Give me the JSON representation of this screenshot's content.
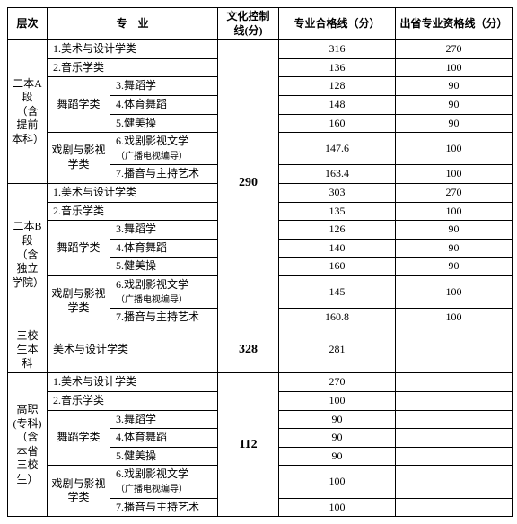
{
  "headers": {
    "level": "层次",
    "major": "专　业",
    "culture": "文化控制线(分)",
    "pass": "专业合格线（分）",
    "outprov": "出省专业资格线（分）"
  },
  "groups": {
    "danceSub": "舞蹈学类",
    "dramaSub": "戏剧与影视学类"
  },
  "subrows": {
    "r1": "1.美术与设计学类",
    "r2": "2.音乐学类",
    "r3": "3.舞蹈学",
    "r4": "4.体育舞蹈",
    "r5": "5.健美操",
    "r6a": "6.戏剧影视文学",
    "r6b": "（广播电视编导）",
    "r7": "7.播音与主持艺术"
  },
  "sections": [
    {
      "name": "二本A段（含提前本科）",
      "culture": "290",
      "cultureRowspan": 14,
      "rows": [
        {
          "pass": "316",
          "out": "270"
        },
        {
          "pass": "136",
          "out": "100"
        },
        {
          "pass": "128",
          "out": "90"
        },
        {
          "pass": "148",
          "out": "90"
        },
        {
          "pass": "160",
          "out": "90"
        },
        {
          "pass": "147.6",
          "out": "100"
        },
        {
          "pass": "163.4",
          "out": "100"
        }
      ]
    },
    {
      "name": "二本B段（含独立学院）",
      "rows": [
        {
          "pass": "303",
          "out": "270"
        },
        {
          "pass": "135",
          "out": "100"
        },
        {
          "pass": "126",
          "out": "90"
        },
        {
          "pass": "140",
          "out": "90"
        },
        {
          "pass": "160",
          "out": "90"
        },
        {
          "pass": "145",
          "out": "100"
        },
        {
          "pass": "160.8",
          "out": "100"
        }
      ]
    },
    {
      "name": "三校生本科",
      "culture": "328",
      "single": {
        "major": "美术与设计学类",
        "pass": "281",
        "out": ""
      }
    },
    {
      "name": "高职(专科)（含本省三校生）",
      "culture": "112",
      "rows": [
        {
          "pass": "270",
          "out": ""
        },
        {
          "pass": "100",
          "out": ""
        },
        {
          "pass": "90",
          "out": ""
        },
        {
          "pass": "90",
          "out": ""
        },
        {
          "pass": "90",
          "out": ""
        },
        {
          "pass": "100",
          "out": ""
        },
        {
          "pass": "100",
          "out": ""
        }
      ]
    }
  ]
}
